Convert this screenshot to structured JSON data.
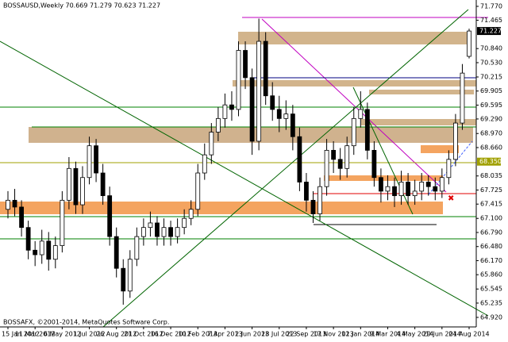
{
  "chart_data": {
    "type": "candlestick",
    "title": "BOSSAUSD,Weekly  70.669 71.279 70.623 71.227",
    "footer": "BOSSAFX, ©2001-2014, MetaQuotes Software Corp.",
    "categories": [
      "15 Jan 2012",
      null,
      null,
      null,
      "11 Mar 2012",
      null,
      null,
      null,
      "6 May 2012",
      null,
      null,
      null,
      "1 Jul 2012",
      null,
      null,
      null,
      "26 Aug 2012",
      null,
      null,
      null,
      "21 Oct 2012",
      null,
      null,
      null,
      "16 Dec 2012",
      null,
      null,
      null,
      "10 Feb 2013",
      null,
      null,
      null,
      "7 Apr 2013",
      null,
      null,
      null,
      "2 Jun 2013",
      null,
      null,
      null,
      "28 Jul 2013",
      null,
      null,
      null,
      "22 Sep 2013",
      null,
      null,
      null,
      "17 Nov 2013",
      null,
      null,
      null,
      "12 Jan 2014",
      null,
      null,
      null,
      "9 Mar 2014",
      null,
      null,
      null,
      "4 May 2014",
      null,
      null,
      null,
      "29 Jun 2014",
      null,
      null,
      null,
      "24 Aug 2014"
    ],
    "open": [
      67.3,
      67.5,
      67.35,
      66.9,
      66.4,
      66.3,
      66.6,
      66.2,
      66.5,
      67.5,
      68.2,
      67.4,
      68.0,
      68.7,
      68.1,
      67.6,
      66.7,
      66.0,
      65.5,
      66.2,
      66.7,
      66.9,
      67.0,
      66.7,
      66.9,
      66.7,
      66.9,
      67.1,
      67.3,
      68.1,
      68.5,
      69.0,
      69.3,
      69.6,
      69.5,
      70.8,
      70.2,
      68.8,
      71.0,
      69.8,
      69.5,
      69.3,
      69.4,
      68.9,
      67.9,
      67.5,
      67.2,
      67.8,
      68.6,
      68.4,
      68.2,
      68.7,
      69.3,
      69.5,
      68.6,
      68.0,
      67.7,
      67.8,
      67.6,
      67.9,
      67.6,
      67.7,
      67.9,
      67.8,
      67.7,
      68.0,
      68.4,
      69.2,
      70.669
    ],
    "high": [
      67.7,
      67.75,
      67.5,
      67.05,
      66.6,
      66.85,
      66.8,
      66.7,
      67.7,
      68.45,
      68.35,
      68.25,
      68.9,
      68.85,
      68.3,
      67.8,
      66.9,
      66.2,
      66.4,
      66.9,
      67.1,
      67.25,
      67.15,
      67.1,
      67.05,
      67.1,
      67.3,
      67.5,
      68.3,
      68.75,
      69.2,
      69.55,
      69.85,
      69.9,
      71.0,
      71.0,
      70.4,
      71.5,
      71.2,
      70.1,
      69.8,
      69.7,
      69.6,
      69.1,
      68.1,
      67.7,
      68.0,
      68.85,
      68.8,
      68.65,
      68.9,
      69.55,
      69.9,
      69.65,
      68.8,
      68.2,
      68.05,
      68.0,
      68.15,
      68.1,
      67.95,
      68.1,
      68.05,
      68.0,
      68.2,
      68.6,
      69.4,
      70.5,
      71.279
    ],
    "low": [
      67.1,
      67.15,
      66.7,
      66.2,
      66.05,
      66.1,
      65.95,
      66.0,
      66.35,
      67.3,
      67.2,
      67.2,
      67.85,
      67.9,
      67.4,
      66.5,
      65.8,
      65.2,
      65.35,
      66.05,
      66.5,
      66.7,
      66.5,
      66.5,
      66.5,
      66.55,
      66.75,
      66.95,
      67.15,
      67.95,
      68.3,
      68.8,
      69.1,
      69.25,
      69.35,
      69.95,
      68.5,
      68.6,
      69.6,
      69.25,
      69.0,
      69.05,
      68.6,
      67.7,
      67.25,
      67.0,
      67.05,
      67.6,
      68.1,
      67.95,
      68.0,
      68.5,
      69.1,
      68.4,
      67.8,
      67.45,
      67.5,
      67.35,
      67.4,
      67.4,
      67.4,
      67.5,
      67.6,
      67.5,
      67.55,
      67.85,
      68.25,
      69.05,
      70.623
    ],
    "close": [
      67.5,
      67.35,
      66.9,
      66.4,
      66.3,
      66.6,
      66.2,
      66.5,
      67.5,
      68.2,
      67.4,
      68.0,
      68.7,
      68.1,
      67.6,
      66.7,
      66.0,
      65.5,
      66.2,
      66.7,
      66.9,
      67.0,
      66.7,
      66.9,
      66.7,
      66.9,
      67.1,
      67.3,
      68.1,
      68.5,
      69.0,
      69.3,
      69.6,
      69.5,
      70.8,
      70.2,
      68.8,
      71.0,
      69.8,
      69.5,
      69.3,
      69.4,
      68.9,
      67.9,
      67.5,
      67.2,
      67.8,
      68.6,
      68.4,
      68.2,
      68.7,
      69.3,
      69.5,
      68.6,
      68.0,
      67.7,
      67.8,
      67.6,
      67.9,
      67.6,
      67.7,
      67.9,
      67.8,
      67.7,
      68.0,
      68.4,
      69.2,
      70.3,
      71.227
    ],
    "ylim": [
      64.71,
      71.91
    ],
    "yticks": [
      {
        "value": 71.77,
        "label": "71.770"
      },
      71.465,
      {
        "value": 70.84,
        "label": "70.840"
      },
      {
        "value": 70.53,
        "label": "70.530"
      },
      70.215,
      69.905,
      69.595,
      {
        "value": 69.29,
        "label": "69.290"
      },
      {
        "value": 68.97,
        "label": "68.970"
      },
      {
        "value": 68.66,
        "label": "68.660"
      },
      68.035,
      67.725,
      67.415,
      {
        "value": 67.1,
        "label": "67.100"
      },
      {
        "value": 66.79,
        "label": "66.790"
      },
      {
        "value": 66.48,
        "label": "66.480"
      },
      {
        "value": 66.17,
        "label": "66.170"
      },
      {
        "value": 65.86,
        "label": "65.860"
      },
      65.545,
      65.235,
      {
        "value": 64.92,
        "label": "64.920"
      }
    ],
    "current_price": 71.227,
    "level_price": {
      "value": 68.35,
      "label": "68.350"
    },
    "bull_color": "#ffffff",
    "bear_color": "#000000",
    "grid": false
  }
}
